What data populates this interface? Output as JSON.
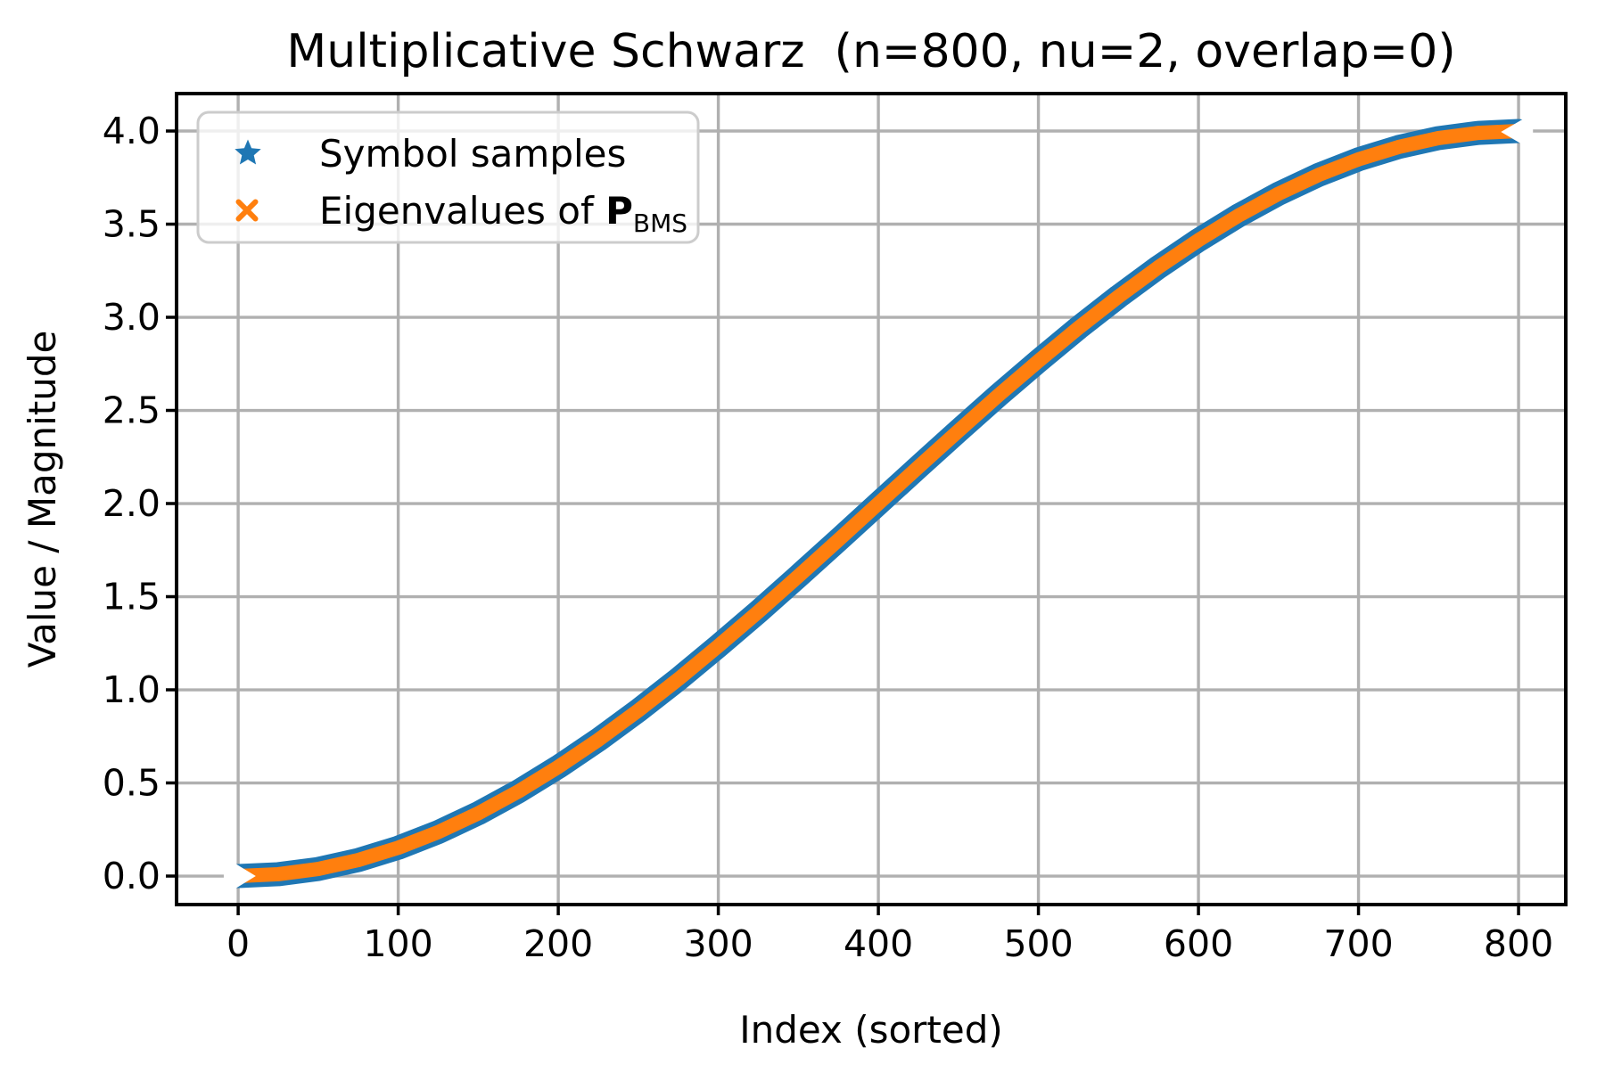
{
  "figure": {
    "background": "#ffffff"
  },
  "chart_data": {
    "type": "scatter",
    "title": "Multiplicative Schwarz  (n=800, nu=2, overlap=0)",
    "xlabel": "Index (sorted)",
    "ylabel": "Value / Magnitude",
    "xlim": [
      -38.5,
      829.5
    ],
    "ylim": [
      -0.153,
      4.201
    ],
    "grid": true,
    "n_points": 800,
    "xticks": [
      0,
      100,
      200,
      300,
      400,
      500,
      600,
      700,
      800
    ],
    "xtick_labels": [
      "0",
      "100",
      "200",
      "300",
      "400",
      "500",
      "600",
      "700",
      "800"
    ],
    "yticks": [
      0.0,
      0.5,
      1.0,
      1.5,
      2.0,
      2.5,
      3.0,
      3.5,
      4.0
    ],
    "ytick_labels": [
      "0.0",
      "0.5",
      "1.0",
      "1.5",
      "2.0",
      "2.5",
      "3.0",
      "3.5",
      "4.0"
    ],
    "colors": {
      "series1": "#1f77b4",
      "series2": "#ff7f0e",
      "grid": "#b0b0b0",
      "spine": "#000000",
      "text": "#000000",
      "legend_border": "#cccccc",
      "legend_fill": "rgba(255,255,255,0.8)"
    },
    "legend": {
      "position": "upper left",
      "entries": [
        {
          "label": "Symbol samples",
          "marker": "star",
          "color": "#1f77b4"
        },
        {
          "label": "Eigenvalues of P_BMS",
          "label_prefix": "Eigenvalues of ",
          "label_bold": "P",
          "label_subscript": "BMS",
          "marker": "x",
          "color": "#ff7f0e"
        }
      ]
    },
    "series": [
      {
        "name": "Symbol samples",
        "marker": "star",
        "color": "#1f77b4",
        "x": [
          0,
          25,
          50,
          75,
          100,
          125,
          150,
          175,
          200,
          225,
          250,
          275,
          300,
          325,
          350,
          375,
          400,
          425,
          450,
          475,
          500,
          525,
          550,
          575,
          600,
          625,
          650,
          675,
          700,
          725,
          750,
          775,
          800
        ],
        "y": [
          0.0,
          0.01,
          0.038,
          0.086,
          0.152,
          0.236,
          0.337,
          0.454,
          0.586,
          0.731,
          0.889,
          1.057,
          1.235,
          1.419,
          1.61,
          1.804,
          2.0,
          2.196,
          2.39,
          2.581,
          2.765,
          2.943,
          3.111,
          3.269,
          3.414,
          3.546,
          3.663,
          3.764,
          3.848,
          3.914,
          3.962,
          3.99,
          4.0
        ]
      },
      {
        "name": "Eigenvalues of P_BMS",
        "marker": "x",
        "color": "#ff7f0e",
        "x": [
          0,
          25,
          50,
          75,
          100,
          125,
          150,
          175,
          200,
          225,
          250,
          275,
          300,
          325,
          350,
          375,
          400,
          425,
          450,
          475,
          500,
          525,
          550,
          575,
          600,
          625,
          650,
          675,
          700,
          725,
          750,
          775,
          800
        ],
        "y": [
          0.0,
          0.01,
          0.038,
          0.086,
          0.152,
          0.236,
          0.337,
          0.454,
          0.586,
          0.731,
          0.889,
          1.057,
          1.235,
          1.419,
          1.61,
          1.804,
          2.0,
          2.196,
          2.39,
          2.581,
          2.765,
          2.943,
          3.111,
          3.269,
          3.414,
          3.546,
          3.663,
          3.764,
          3.848,
          3.914,
          3.962,
          3.99,
          4.0
        ]
      }
    ]
  }
}
